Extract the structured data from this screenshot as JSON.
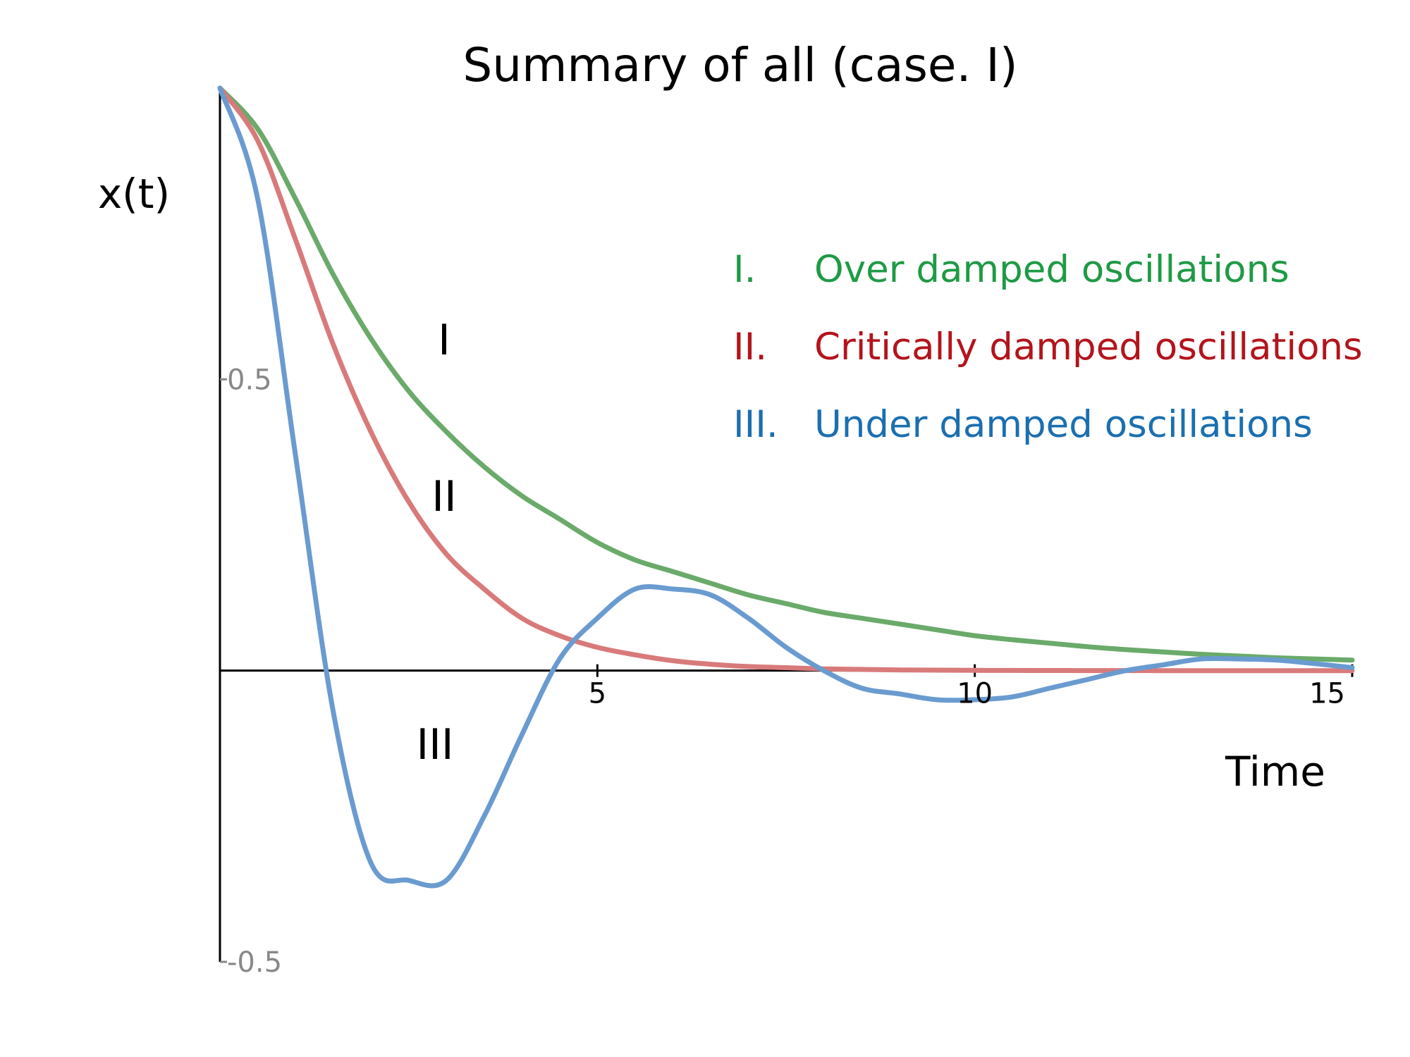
{
  "chart_data": {
    "type": "line",
    "title": "Summary of all (case. I)",
    "xlabel": "Time",
    "ylabel": "x(t)",
    "xlim": [
      0,
      15
    ],
    "ylim": [
      -0.5,
      1.0
    ],
    "x_ticks": [
      {
        "value": 5,
        "label": "5"
      },
      {
        "value": 10,
        "label": "10"
      },
      {
        "value": 15,
        "label": "15"
      }
    ],
    "y_ticks": [
      {
        "value": 0.5,
        "label": "0.5"
      },
      {
        "value": -0.5,
        "label": "-0.5"
      }
    ],
    "grid": false,
    "legend_position": "top-right",
    "tick_color": "#888888",
    "series": [
      {
        "id": "over",
        "name": "Over damped oscillations",
        "legend_numeral": "I.",
        "curve_label": "I",
        "color": "#6aaa6a",
        "legend_color": "#1f9a45",
        "x": [
          0,
          0.5,
          1,
          1.5,
          2,
          2.5,
          3,
          3.5,
          4,
          4.5,
          5,
          5.5,
          6,
          6.5,
          7,
          7.5,
          8,
          8.5,
          9,
          9.5,
          10,
          10.5,
          11,
          11.5,
          12,
          12.5,
          13,
          13.5,
          14,
          14.5,
          15
        ],
        "y": [
          1.0,
          0.93,
          0.81,
          0.68,
          0.57,
          0.48,
          0.41,
          0.35,
          0.3,
          0.26,
          0.22,
          0.19,
          0.17,
          0.15,
          0.13,
          0.115,
          0.1,
          0.09,
          0.08,
          0.07,
          0.06,
          0.053,
          0.047,
          0.041,
          0.036,
          0.032,
          0.028,
          0.025,
          0.022,
          0.02,
          0.018
        ]
      },
      {
        "id": "critical",
        "name": "Critically damped oscillations",
        "legend_numeral": "II.",
        "curve_label": "II",
        "color": "#d97a7a",
        "legend_color": "#b3141c",
        "x": [
          0,
          0.5,
          1,
          1.5,
          2,
          2.5,
          3,
          3.5,
          4,
          4.5,
          5,
          5.5,
          6,
          6.5,
          7,
          7.5,
          8,
          8.5,
          9,
          9.5,
          10,
          10.5,
          11,
          11.5,
          12,
          12.5,
          13,
          13.5,
          14,
          14.5,
          15
        ],
        "y": [
          1.0,
          0.91,
          0.74,
          0.56,
          0.41,
          0.29,
          0.2,
          0.14,
          0.09,
          0.06,
          0.04,
          0.027,
          0.017,
          0.011,
          0.007,
          0.005,
          0.003,
          0.002,
          0.0012,
          0.0008,
          0.0005,
          0.0003,
          0.0002,
          0.0001,
          0.0001,
          0.0,
          0.0,
          0.0,
          0.0,
          0.0,
          0.0
        ]
      },
      {
        "id": "under",
        "name": "Under damped oscillations",
        "legend_numeral": "III.",
        "curve_label": "III",
        "color": "#6a9bd0",
        "legend_color": "#1a6fb0",
        "x": [
          0,
          0.5,
          1,
          1.5,
          2,
          2.5,
          3,
          3.5,
          4,
          4.5,
          5,
          5.5,
          6,
          6.5,
          7,
          7.5,
          8,
          8.5,
          9,
          9.5,
          10,
          10.5,
          11,
          11.5,
          12,
          12.5,
          13,
          13.5,
          14,
          14.5,
          15
        ],
        "y": [
          1.0,
          0.81,
          0.37,
          -0.07,
          -0.33,
          -0.36,
          -0.36,
          -0.25,
          -0.11,
          0.02,
          0.09,
          0.14,
          0.14,
          0.13,
          0.09,
          0.04,
          0.0,
          -0.03,
          -0.04,
          -0.05,
          -0.05,
          -0.045,
          -0.03,
          -0.015,
          0.0,
          0.01,
          0.02,
          0.02,
          0.018,
          0.012,
          0.005
        ]
      }
    ]
  }
}
